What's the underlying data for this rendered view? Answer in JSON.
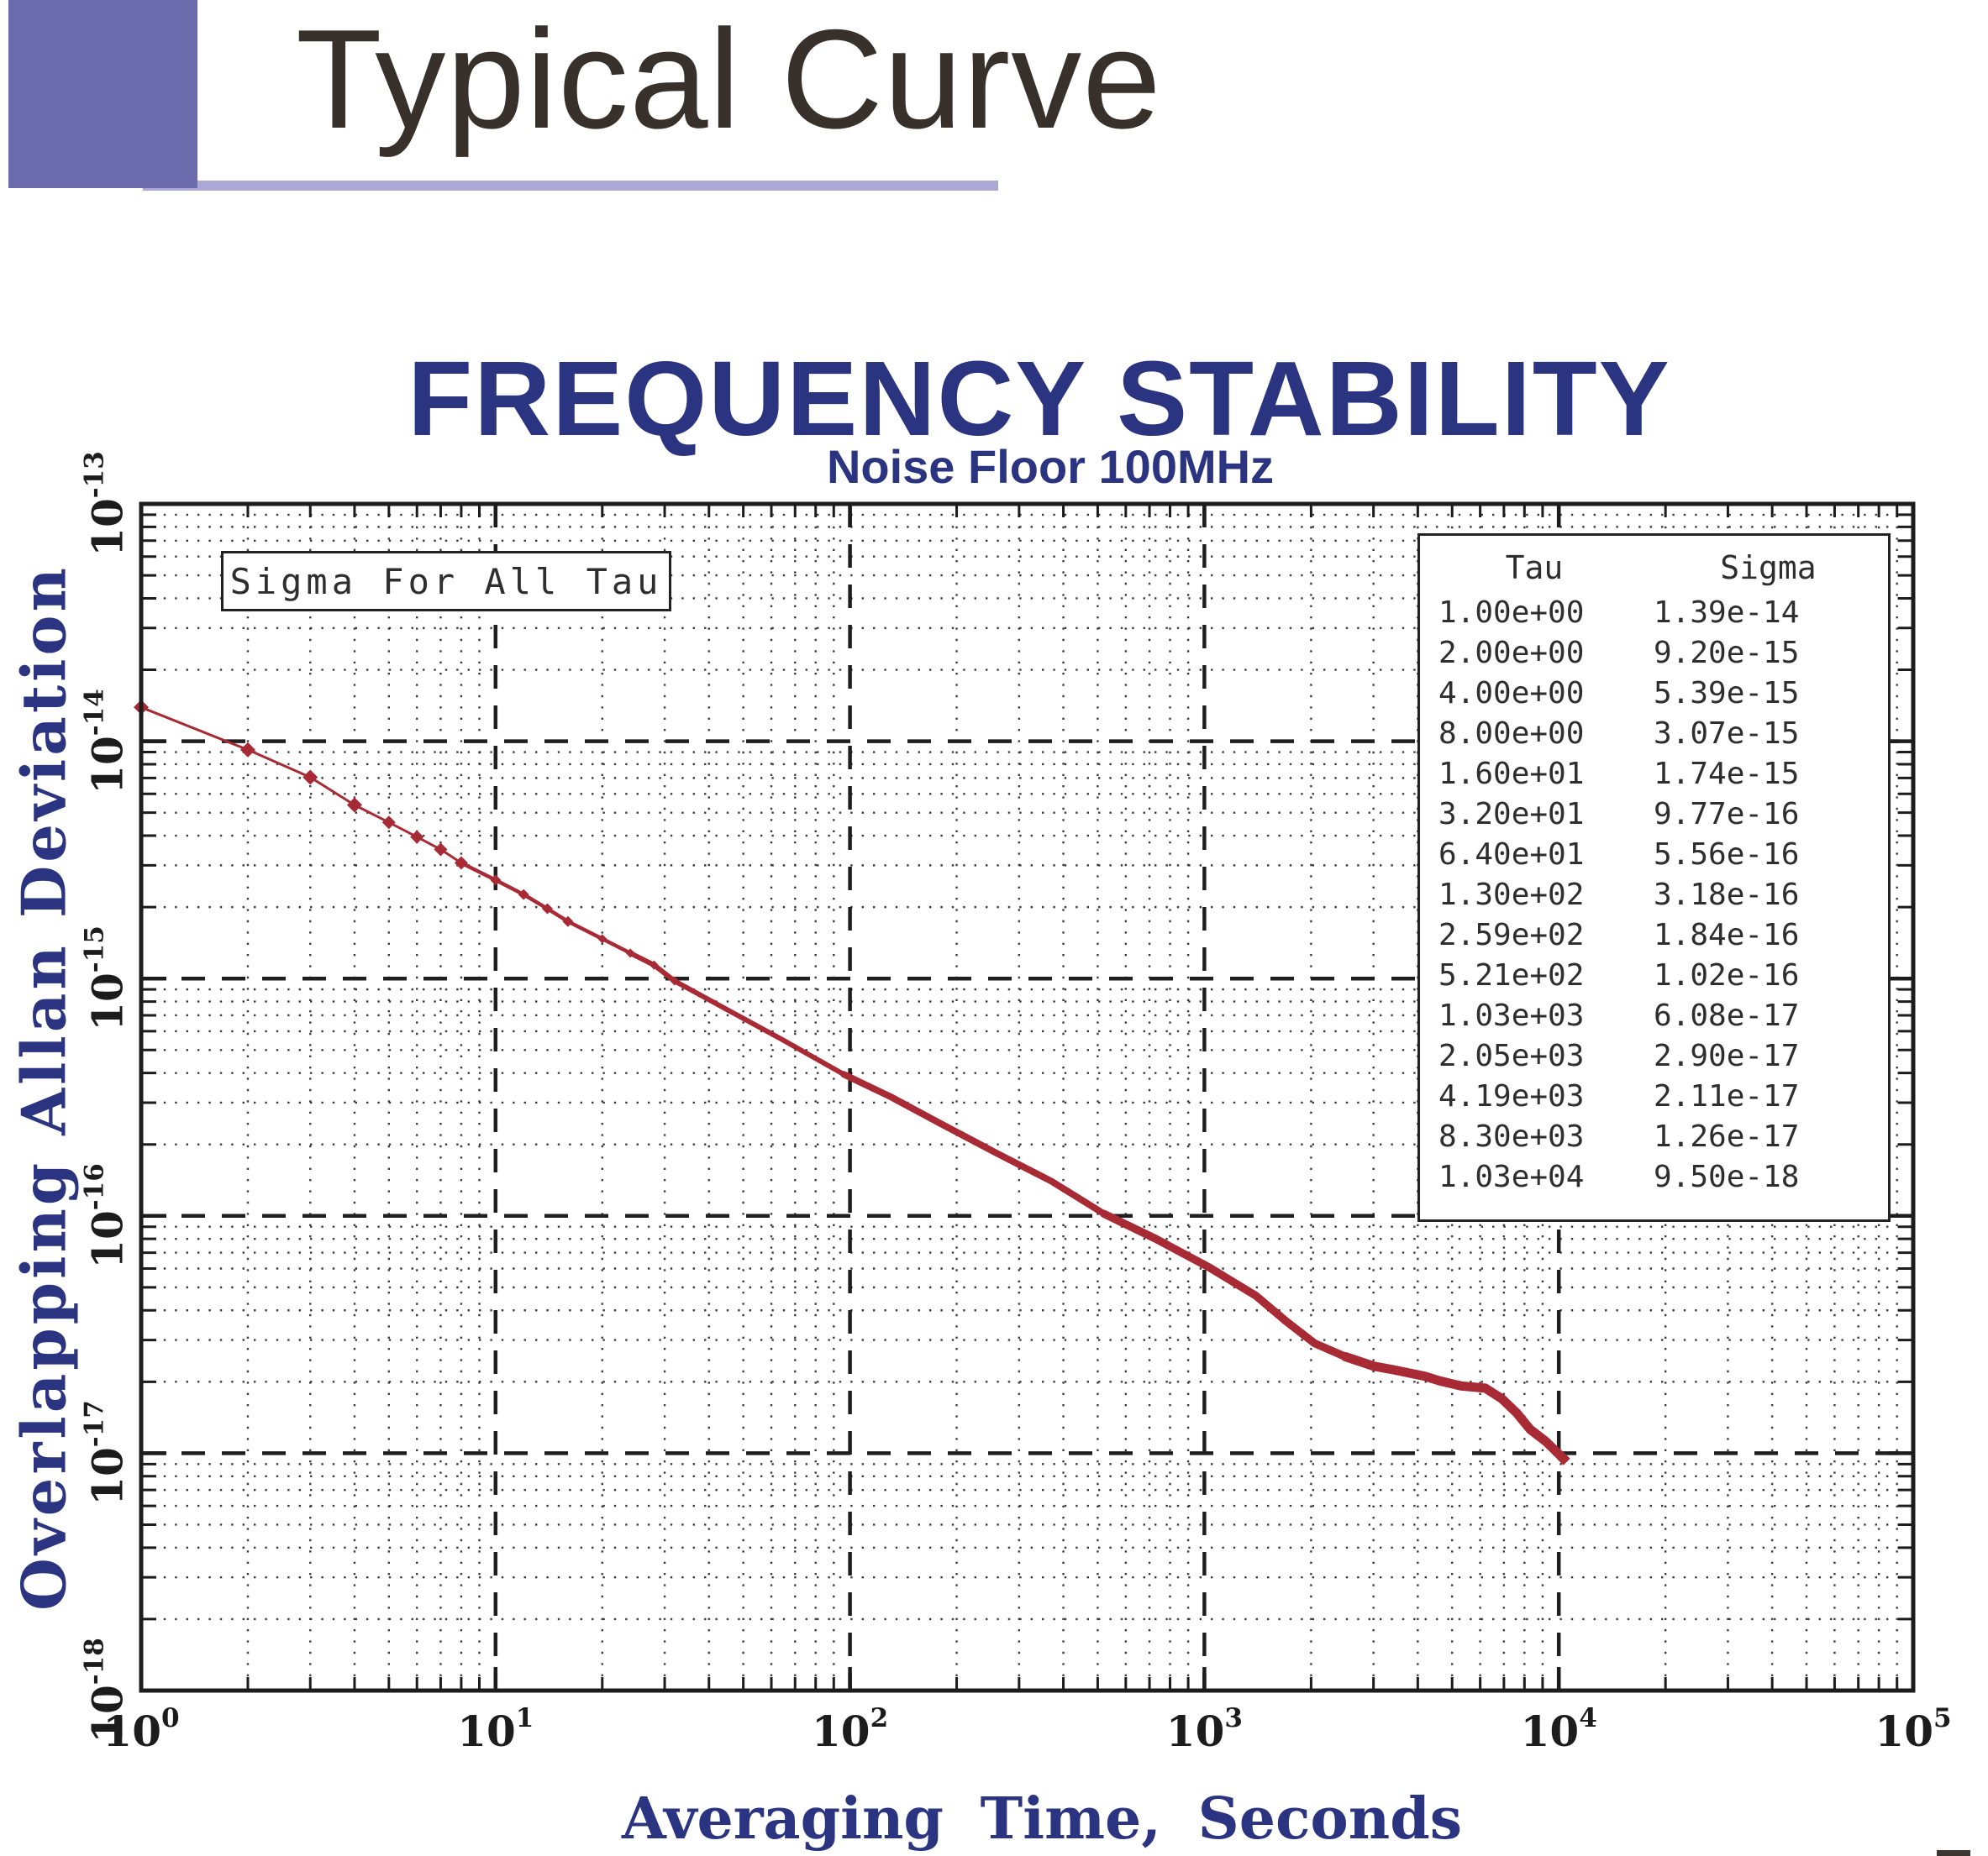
{
  "slide": {
    "title": "Typical Curve"
  },
  "colors": {
    "accent_purple": "#6C6BAD",
    "accent_purple_light": "#ABA8D5",
    "title_text": "#37302B",
    "chart_blue": "#2B3480",
    "curve_red": "#A82A34",
    "grid_minor": "#3c3c3c",
    "grid_major": "#1f1f1f"
  },
  "chart": {
    "title": "FREQUENCY STABILITY",
    "subtitle": "Noise Floor 100MHz",
    "x_axis_label": "Averaging Time, Seconds",
    "y_axis_label": "Overlapping Allan Deviation",
    "annotation": "Sigma For All Tau",
    "x_tick_exponents": [
      "0",
      "1",
      "2",
      "3",
      "4",
      "5"
    ],
    "y_tick_exponents": [
      "-13",
      "-14",
      "-15",
      "-16",
      "-17",
      "-18"
    ],
    "table": {
      "headers": [
        "Tau",
        "Sigma"
      ],
      "rows": [
        [
          "1.00e+00",
          "1.39e-14"
        ],
        [
          "2.00e+00",
          "9.20e-15"
        ],
        [
          "4.00e+00",
          "5.39e-15"
        ],
        [
          "8.00e+00",
          "3.07e-15"
        ],
        [
          "1.60e+01",
          "1.74e-15"
        ],
        [
          "3.20e+01",
          "9.77e-16"
        ],
        [
          "6.40e+01",
          "5.56e-16"
        ],
        [
          "1.30e+02",
          "3.18e-16"
        ],
        [
          "2.59e+02",
          "1.84e-16"
        ],
        [
          "5.21e+02",
          "1.02e-16"
        ],
        [
          "1.03e+03",
          "6.08e-17"
        ],
        [
          "2.05e+03",
          "2.90e-17"
        ],
        [
          "4.19e+03",
          "2.11e-17"
        ],
        [
          "8.30e+03",
          "1.26e-17"
        ],
        [
          "1.03e+04",
          "9.50e-18"
        ]
      ]
    }
  },
  "chart_data": {
    "type": "line",
    "title": "FREQUENCY STABILITY",
    "subtitle": "Noise Floor 100MHz",
    "xlabel": "Averaging Time, Seconds",
    "ylabel": "Overlapping Allan Deviation",
    "x_scale": "log",
    "y_scale": "log",
    "xlim": [
      1,
      100000
    ],
    "ylim": [
      1e-18,
      1e-13
    ],
    "grid": "minor-dotted-major-dashed",
    "legend_position": "none",
    "series": [
      {
        "name": "Overlapping Allan Deviation",
        "color": "#A82A34",
        "points": [
          [
            1,
            1.39e-14
          ],
          [
            2,
            9.2e-15
          ],
          [
            3,
            7.05e-15
          ],
          [
            4,
            5.39e-15
          ],
          [
            5,
            4.55e-15
          ],
          [
            6,
            3.95e-15
          ],
          [
            7,
            3.5e-15
          ],
          [
            8,
            3.07e-15
          ],
          [
            10,
            2.6e-15
          ],
          [
            12,
            2.26e-15
          ],
          [
            14,
            1.97e-15
          ],
          [
            16,
            1.74e-15
          ],
          [
            20,
            1.47e-15
          ],
          [
            24,
            1.28e-15
          ],
          [
            28,
            1.14e-15
          ],
          [
            32,
            9.77e-16
          ],
          [
            48,
            7.02e-16
          ],
          [
            64,
            5.56e-16
          ],
          [
            96,
            3.95e-16
          ],
          [
            130,
            3.18e-16
          ],
          [
            180,
            2.45e-16
          ],
          [
            259,
            1.84e-16
          ],
          [
            370,
            1.4e-16
          ],
          [
            521,
            1.02e-16
          ],
          [
            730,
            8e-17
          ],
          [
            1030,
            6.08e-17
          ],
          [
            1400,
            4.6e-17
          ],
          [
            1700,
            3.6e-17
          ],
          [
            2050,
            2.9e-17
          ],
          [
            2500,
            2.55e-17
          ],
          [
            3000,
            2.33e-17
          ],
          [
            3400,
            2.25e-17
          ],
          [
            4190,
            2.11e-17
          ],
          [
            4600,
            2.02e-17
          ],
          [
            5300,
            1.92e-17
          ],
          [
            6200,
            1.88e-17
          ],
          [
            6900,
            1.7e-17
          ],
          [
            7600,
            1.48e-17
          ],
          [
            8300,
            1.26e-17
          ],
          [
            9200,
            1.12e-17
          ],
          [
            10300,
            9.5e-18
          ]
        ]
      }
    ],
    "marked_points": [
      [
        1,
        1.39e-14
      ],
      [
        2,
        9.2e-15
      ],
      [
        3,
        7.05e-15
      ],
      [
        4,
        5.39e-15
      ],
      [
        5,
        4.55e-15
      ],
      [
        6,
        3.95e-15
      ],
      [
        7,
        3.5e-15
      ],
      [
        8,
        3.07e-15
      ],
      [
        10,
        2.6e-15
      ],
      [
        12,
        2.26e-15
      ],
      [
        14,
        1.97e-15
      ],
      [
        16,
        1.74e-15
      ],
      [
        20,
        1.47e-15
      ],
      [
        24,
        1.28e-15
      ],
      [
        28,
        1.14e-15
      ],
      [
        32,
        9.77e-16
      ],
      [
        10300,
        9.5e-18
      ]
    ]
  }
}
